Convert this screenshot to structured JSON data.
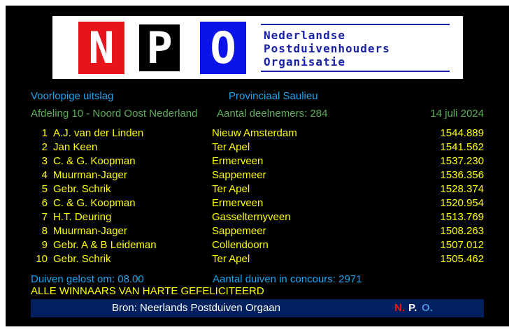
{
  "logo": {
    "letters": [
      "N",
      "P",
      "O"
    ],
    "lines": [
      "Nederlandse",
      "Postduivenhouders",
      "Organisatie"
    ]
  },
  "header": {
    "title": "Voorlopige uitslag",
    "race": "Provinciaal Saulieu",
    "afdeling": "Afdeling 10 - Noord Oost Nederland",
    "deelnemers": "Aantal deelnemers: 284",
    "date": "14 juli 2024"
  },
  "results": [
    {
      "rank": "1",
      "name": "A.J. van der Linden",
      "place": "Nieuw Amsterdam",
      "speed": "1544.889"
    },
    {
      "rank": "2",
      "name": "Jan Keen",
      "place": "Ter Apel",
      "speed": "1541.562"
    },
    {
      "rank": "3",
      "name": "C. & G. Koopman",
      "place": "Ermerveen",
      "speed": "1537.230"
    },
    {
      "rank": "4",
      "name": "Muurman-Jager",
      "place": "Sappemeer",
      "speed": "1536.356"
    },
    {
      "rank": "5",
      "name": "Gebr. Schrik",
      "place": "Ter Apel",
      "speed": "1528.374"
    },
    {
      "rank": "6",
      "name": "C. & G. Koopman",
      "place": "Ermerveen",
      "speed": "1520.954"
    },
    {
      "rank": "7",
      "name": "H.T. Deuring",
      "place": "Gasselternyveen",
      "speed": "1513.769"
    },
    {
      "rank": "8",
      "name": "Muurman-Jager",
      "place": "Sappemeer",
      "speed": "1508.263"
    },
    {
      "rank": "9",
      "name": "Gebr. A & B Leideman",
      "place": "Collendoorn",
      "speed": "1507.012"
    },
    {
      "rank": "10",
      "name": "Gebr. Schrik",
      "place": "Ter Apel",
      "speed": "1505.462"
    }
  ],
  "footer": {
    "gelost": "Duiven gelost om: 08.00",
    "concours": "Aantal duiven in concours: 2971",
    "congrats": "ALLE WINNAARS VAN HARTE GEFELICITEERD",
    "bron": "Bron: Neerlands Postduiven Orgaan",
    "npo": [
      "N.",
      "P.",
      "O."
    ]
  },
  "colors": {
    "blue": "#1ea4ec",
    "green": "#5cae58",
    "yellow": "#ffff00",
    "bar": "#002060"
  }
}
